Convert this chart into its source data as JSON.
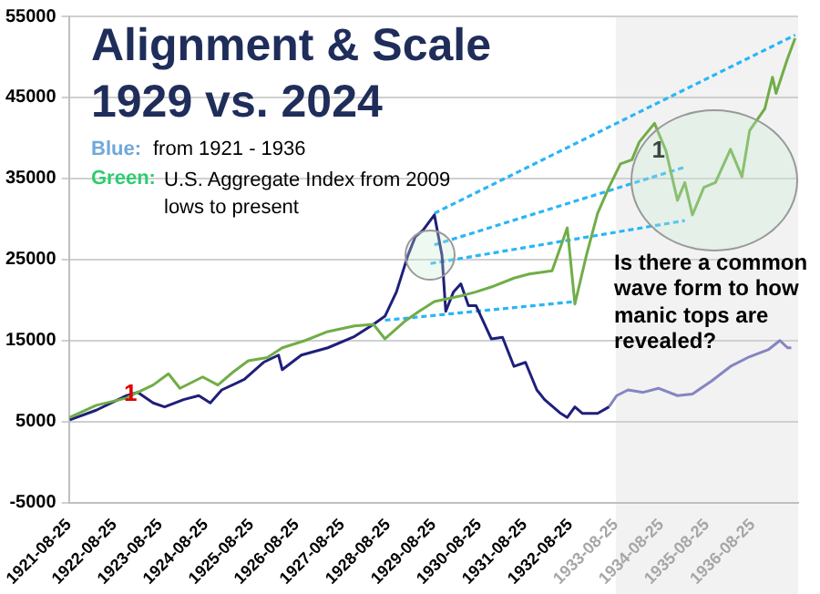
{
  "chart_data": {
    "type": "line",
    "title": "Alignment & Scale 1929 vs. 2024",
    "annotations": [
      "Blue:",
      "from 1921 - 1936",
      "Green:",
      "U.S. Aggregate Index from 2009 lows to present",
      {
        "text": "1",
        "x": "1923-01",
        "y": 8400
      },
      {
        "text": "1",
        "x": "1934-08",
        "y": 38400
      },
      "Is there a common wave form to how manic tops are revealed?"
    ],
    "xlim": [
      "1921-08-25",
      "1937-08-25"
    ],
    "xticks": [
      "1921-08-25",
      "1922-08-25",
      "1923-08-25",
      "1924-08-25",
      "1925-08-25",
      "1926-08-25",
      "1927-08-25",
      "1928-08-25",
      "1929-08-25",
      "1930-08-25",
      "1931-08-25",
      "1932-08-25",
      "1933-08-25",
      "1934-08-25",
      "1935-08-25",
      "1936-08-25"
    ],
    "ylim": [
      -5000,
      55000
    ],
    "yticks": [
      -5000,
      5000,
      15000,
      25000,
      35000,
      45000,
      55000
    ],
    "grid": "y",
    "legend": false,
    "marker": "none",
    "bands": [
      {
        "axis": "x",
        "from": "1933-08-25",
        "to": "1937-08-25",
        "color": "#f2f2f2"
      }
    ],
    "series": [
      {
        "color": "#70ad47",
        "x": [
          "1921-09",
          "1922-04",
          "1922-12",
          "1923-02",
          "1923-07",
          "1923-11",
          "1924-02",
          "1924-08",
          "1924-12",
          "1925-04",
          "1925-08",
          "1926-01",
          "1926-05",
          "1926-11",
          "1927-05",
          "1927-12",
          "1928-05",
          "1928-08",
          "1929-01",
          "1929-05",
          "1929-09",
          "1930-04",
          "1930-08",
          "1930-12",
          "1931-06",
          "1931-10",
          "1932-04",
          "1932-08",
          "1932-10",
          "1933-01",
          "1933-04",
          "1933-07",
          "1933-10",
          "1934-01",
          "1934-03",
          "1934-07",
          "1934-10",
          "1935-01",
          "1935-03",
          "1935-05",
          "1935-08",
          "1935-11",
          "1936-03",
          "1936-06",
          "1936-08",
          "1936-12",
          "1937-02",
          "1937-03",
          "1937-06",
          "1937-08"
        ],
        "values": [
          5500,
          7000,
          7900,
          8400,
          9500,
          10900,
          9100,
          10500,
          9500,
          11100,
          12500,
          12900,
          14100,
          15000,
          16100,
          16800,
          17000,
          15200,
          17300,
          18600,
          19800,
          20500,
          21000,
          21600,
          22700,
          23200,
          23600,
          28900,
          19500,
          25500,
          30700,
          33900,
          36800,
          37300,
          39500,
          41800,
          38400,
          32300,
          34500,
          30500,
          33900,
          34500,
          38600,
          35200,
          40900,
          43600,
          47500,
          45500,
          49800,
          52300
        ]
      },
      {
        "color": "#1f1f7a",
        "x": [
          "1921-09",
          "1922-04",
          "1922-12",
          "1923-03",
          "1923-07",
          "1923-10",
          "1924-03",
          "1924-07",
          "1924-10",
          "1925-01",
          "1925-07",
          "1925-12",
          "1926-04",
          "1926-05",
          "1926-10",
          "1927-05",
          "1927-12",
          "1928-05",
          "1928-08",
          "1928-11",
          "1929-02",
          "1929-04",
          "1929-06",
          "1929-09",
          "1929-11",
          "1929-12",
          "1930-02",
          "1930-04",
          "1930-06",
          "1930-08",
          "1930-12",
          "1931-03",
          "1931-06",
          "1931-09",
          "1931-12",
          "1932-02",
          "1932-06",
          "1932-08",
          "1932-10",
          "1932-12",
          "1933-04",
          "1933-07"
        ],
        "values": [
          5200,
          6400,
          8200,
          8600,
          7300,
          6800,
          7700,
          8200,
          7300,
          8900,
          10200,
          12300,
          13200,
          11400,
          13200,
          14100,
          15500,
          17000,
          18000,
          21000,
          25500,
          27800,
          28600,
          30500,
          25500,
          18600,
          21000,
          22000,
          19300,
          19300,
          15200,
          15400,
          11800,
          12300,
          8900,
          7700,
          6100,
          5500,
          6800,
          6000,
          6000,
          6800
        ]
      },
      {
        "color": "#8585c2",
        "x": [
          "1933-07",
          "1933-09",
          "1933-12",
          "1934-04",
          "1934-08",
          "1935-01",
          "1935-05",
          "1935-10",
          "1936-03",
          "1936-08",
          "1937-01",
          "1937-04",
          "1937-06",
          "1937-07"
        ],
        "values": [
          6800,
          8200,
          8900,
          8600,
          9100,
          8200,
          8400,
          10000,
          11800,
          13000,
          13900,
          15000,
          14100,
          14100
        ]
      },
      {
        "color": "#29b6f6",
        "line_style": "dashed",
        "x": [
          "1929-09",
          "1937-08"
        ],
        "values": [
          30700,
          52700
        ]
      },
      {
        "color": "#29b6f6",
        "line_style": "dashed",
        "x": [
          "1929-09",
          "1935-03"
        ],
        "values": [
          26800,
          36400
        ]
      },
      {
        "color": "#29b6f6",
        "line_style": "dashed",
        "x": [
          "1929-08",
          "1935-03"
        ],
        "values": [
          24500,
          29800
        ]
      },
      {
        "color": "#29b6f6",
        "line_style": "dashed",
        "x": [
          "1928-08",
          "1932-10"
        ],
        "values": [
          17500,
          19800
        ]
      }
    ]
  }
}
